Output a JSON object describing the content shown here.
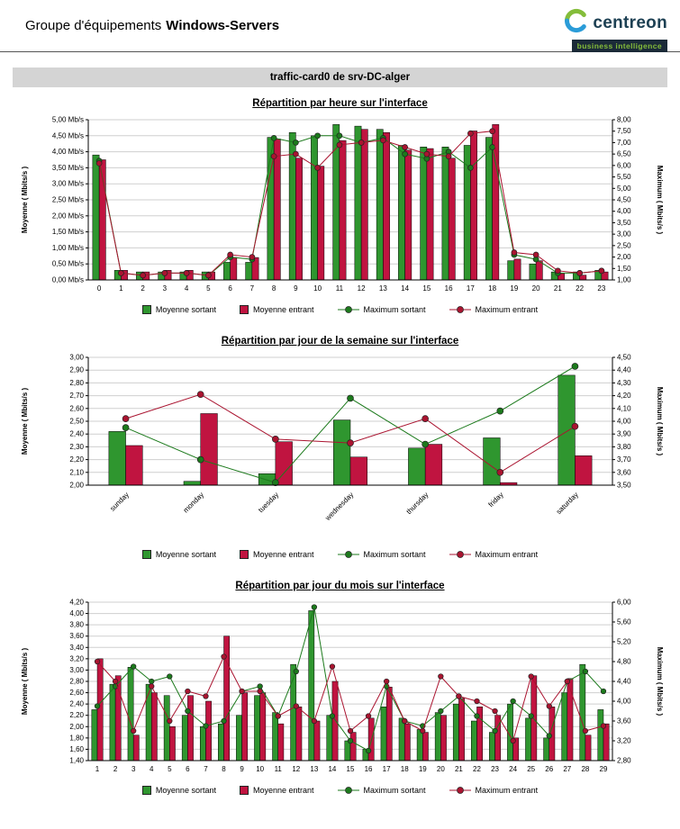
{
  "header": {
    "group_label": "Groupe d'équipements",
    "group_name": "Windows-Servers"
  },
  "logo": {
    "brand": "centreon",
    "tagline": "business intelligence",
    "brand_color": "#1d4053",
    "icon_green": "#84bd3a",
    "icon_blue": "#2b9cd8",
    "tagline_bg": "#1b2a38",
    "tagline_color": "#84bd3a"
  },
  "report": {
    "card_title": "traffic-card0 de srv-DC-alger"
  },
  "chart_data": [
    {
      "type": "bar",
      "overlay": "line",
      "title": "Répartition par heure sur l'interface",
      "categories": [
        "0",
        "1",
        "2",
        "3",
        "4",
        "5",
        "6",
        "7",
        "8",
        "9",
        "10",
        "11",
        "12",
        "13",
        "14",
        "15",
        "16",
        "17",
        "18",
        "19",
        "20",
        "21",
        "22",
        "23"
      ],
      "left_axis": {
        "label": "Moyenne ( Mbits/s )",
        "min": 0,
        "max": 5,
        "step": 0.5,
        "decimals": 2,
        "tick_suffix": " Mb/s"
      },
      "right_axis": {
        "label": "Maximum ( Mbits/s )",
        "min": 1,
        "max": 8,
        "step": 0.5,
        "decimals": 2
      },
      "grid": true,
      "legend_position": "bottom",
      "x_tick_rotation": 0,
      "series": [
        {
          "name": "Moyenne sortant",
          "kind": "bar",
          "axis": "left",
          "color": "#2f962f",
          "values": [
            3.9,
            0.3,
            0.25,
            0.25,
            0.25,
            0.25,
            0.55,
            0.55,
            4.45,
            4.6,
            4.5,
            4.85,
            4.8,
            4.7,
            4.2,
            4.15,
            4.15,
            4.2,
            4.45,
            0.6,
            0.5,
            0.25,
            0.25,
            0.3
          ]
        },
        {
          "name": "Moyenne entrant",
          "kind": "bar",
          "axis": "left",
          "color": "#c01440",
          "values": [
            3.75,
            0.3,
            0.25,
            0.3,
            0.3,
            0.25,
            0.7,
            0.7,
            4.4,
            3.8,
            3.55,
            4.35,
            4.7,
            4.6,
            4.05,
            4.1,
            3.8,
            4.65,
            4.85,
            0.65,
            0.6,
            0.2,
            0.15,
            0.25
          ]
        },
        {
          "name": "Maximum sortant",
          "kind": "line",
          "axis": "right",
          "color": "#1c7a1c",
          "values": [
            6.2,
            1.3,
            1.2,
            1.3,
            1.3,
            1.2,
            2.0,
            1.9,
            7.2,
            7.0,
            7.3,
            7.3,
            7.0,
            7.2,
            6.5,
            6.3,
            6.6,
            5.9,
            6.8,
            2.1,
            1.9,
            1.3,
            1.3,
            1.4
          ]
        },
        {
          "name": "Maximum entrant",
          "kind": "line",
          "axis": "right",
          "color": "#aa1430",
          "values": [
            6.1,
            1.3,
            1.2,
            1.3,
            1.3,
            1.2,
            2.1,
            2.0,
            6.4,
            6.5,
            5.9,
            6.9,
            7.0,
            7.1,
            6.8,
            6.5,
            6.4,
            7.4,
            7.5,
            2.2,
            2.1,
            1.4,
            1.3,
            1.4
          ]
        }
      ]
    },
    {
      "type": "bar",
      "overlay": "line",
      "title": "Répartition par jour de la semaine sur l'interface",
      "categories": [
        "sunday",
        "monday",
        "tuesday",
        "wednesday",
        "thursday",
        "friday",
        "saturday"
      ],
      "left_axis": {
        "label": "Moyenne ( Mbits/s )",
        "min": 2.0,
        "max": 3.0,
        "step": 0.1,
        "decimals": 2
      },
      "right_axis": {
        "label": "Maximum ( Mbits/s )",
        "min": 3.5,
        "max": 4.5,
        "step": 0.1,
        "decimals": 2
      },
      "grid": true,
      "legend_position": "bottom",
      "x_tick_rotation": -45,
      "series": [
        {
          "name": "Moyenne sortant",
          "kind": "bar",
          "axis": "left",
          "color": "#2f962f",
          "values": [
            2.42,
            2.03,
            2.09,
            2.51,
            2.29,
            2.37,
            2.86
          ]
        },
        {
          "name": "Moyenne entrant",
          "kind": "bar",
          "axis": "left",
          "color": "#c01440",
          "values": [
            2.31,
            2.56,
            2.34,
            2.22,
            2.32,
            2.02,
            2.23
          ]
        },
        {
          "name": "Maximum sortant",
          "kind": "line",
          "axis": "right",
          "color": "#1c7a1c",
          "values": [
            3.95,
            3.7,
            3.52,
            4.18,
            3.82,
            4.08,
            4.43
          ]
        },
        {
          "name": "Maximum entrant",
          "kind": "line",
          "axis": "right",
          "color": "#aa1430",
          "values": [
            4.02,
            4.21,
            3.86,
            3.83,
            4.02,
            3.6,
            3.96
          ]
        }
      ]
    },
    {
      "type": "bar",
      "overlay": "line",
      "title": "Répartition par jour du mois sur l'interface",
      "categories": [
        "1",
        "2",
        "3",
        "4",
        "5",
        "6",
        "7",
        "8",
        "9",
        "10",
        "11",
        "12",
        "13",
        "14",
        "15",
        "16",
        "17",
        "18",
        "19",
        "20",
        "21",
        "22",
        "23",
        "24",
        "25",
        "26",
        "27",
        "28",
        "29"
      ],
      "left_axis": {
        "label": "Moyenne ( Mbits/s )",
        "min": 1.4,
        "max": 4.2,
        "step": 0.2,
        "decimals": 2
      },
      "right_axis": {
        "label": "Maximum ( Mbits/s )",
        "min": 2.8,
        "max": 6.0,
        "step": 0.4,
        "decimals": 2
      },
      "grid": true,
      "legend_position": "bottom",
      "x_tick_rotation": 0,
      "series": [
        {
          "name": "Moyenne sortant",
          "kind": "bar",
          "axis": "left",
          "color": "#2f962f",
          "values": [
            2.3,
            2.75,
            3.05,
            2.75,
            2.55,
            2.2,
            2.0,
            2.05,
            2.2,
            2.55,
            2.25,
            3.1,
            4.05,
            2.2,
            1.75,
            1.6,
            2.35,
            2.15,
            1.95,
            2.25,
            2.4,
            2.1,
            1.9,
            2.4,
            2.15,
            1.8,
            2.6,
            3.1,
            2.3
          ]
        },
        {
          "name": "Moyenne entrant",
          "kind": "bar",
          "axis": "left",
          "color": "#c01440",
          "values": [
            3.2,
            2.9,
            1.85,
            2.6,
            2.0,
            2.55,
            2.45,
            3.6,
            2.6,
            2.6,
            2.05,
            2.35,
            2.1,
            2.8,
            1.9,
            2.15,
            2.7,
            2.05,
            1.9,
            2.2,
            2.5,
            2.35,
            2.2,
            1.8,
            2.9,
            2.35,
            2.85,
            1.85,
            2.05
          ]
        },
        {
          "name": "Maximum sortant",
          "kind": "line",
          "axis": "right",
          "color": "#1c7a1c",
          "values": [
            3.9,
            4.3,
            4.7,
            4.4,
            4.5,
            3.8,
            3.5,
            3.6,
            4.2,
            4.3,
            3.7,
            4.6,
            5.9,
            3.7,
            3.2,
            3.0,
            4.3,
            3.6,
            3.5,
            3.8,
            4.1,
            3.7,
            3.4,
            4.0,
            3.7,
            3.3,
            4.4,
            4.6,
            4.2
          ]
        },
        {
          "name": "Maximum entrant",
          "kind": "line",
          "axis": "right",
          "color": "#aa1430",
          "values": [
            4.8,
            4.4,
            3.4,
            4.3,
            3.6,
            4.2,
            4.1,
            4.9,
            4.2,
            4.2,
            3.7,
            3.9,
            3.6,
            4.7,
            3.4,
            3.7,
            4.4,
            3.6,
            3.4,
            4.5,
            4.1,
            4.0,
            3.8,
            3.2,
            4.5,
            3.9,
            4.4,
            3.4,
            3.5
          ]
        }
      ]
    }
  ]
}
